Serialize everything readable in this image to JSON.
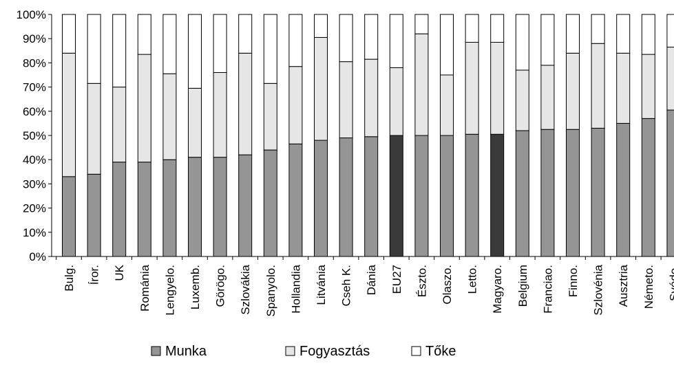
{
  "chart_data": {
    "type": "bar",
    "stacked": "percent",
    "categories": [
      "Bulg.",
      "Íror.",
      "UK",
      "Románia",
      "Lengyelo.",
      "Luxemb.",
      "Görögo.",
      "Szlovákia",
      "Spanyolo.",
      "Hollandia",
      "Litvánia",
      "Cseh K.",
      "Dánia",
      "EU27",
      "Észto.",
      "Olaszo.",
      "Letto.",
      "Magyaro.",
      "Belgium",
      "Franciao.",
      "Finno.",
      "Szlovénia",
      "Ausztria",
      "Németo.",
      "Svédo."
    ],
    "highlight_categories": [
      "EU27",
      "Magyaro."
    ],
    "series": [
      {
        "name": "Munka",
        "color": "#959595",
        "highlight_color": "#3a3a3a",
        "values": [
          33,
          34,
          39,
          39,
          40,
          41,
          41,
          42,
          44,
          46.5,
          48,
          49,
          49.5,
          50,
          50,
          50,
          50.5,
          50.5,
          52,
          52.5,
          52.5,
          53,
          55,
          57,
          60.5
        ]
      },
      {
        "name": "Fogyasztás",
        "color": "#e6e6e6",
        "values": [
          51,
          37.5,
          31,
          44.5,
          35.5,
          28.5,
          35,
          42,
          27.5,
          32,
          42.5,
          31.5,
          32,
          28,
          42,
          25,
          38,
          38,
          25,
          26.5,
          31.5,
          35,
          29,
          26.5,
          26
        ]
      },
      {
        "name": "Tőke",
        "color": "#ffffff",
        "values": [
          16,
          28.5,
          30,
          16.5,
          24.5,
          30.5,
          24,
          16,
          28.5,
          21.5,
          9.5,
          19.5,
          18.5,
          22,
          8,
          25,
          11.5,
          11.5,
          23,
          21,
          16,
          12,
          16,
          16.5,
          13.5
        ]
      }
    ],
    "yticks": [
      "0%",
      "10%",
      "20%",
      "30%",
      "40%",
      "50%",
      "60%",
      "70%",
      "80%",
      "90%",
      "100%"
    ],
    "ylim": [
      0,
      100
    ],
    "title": "",
    "xlabel": "",
    "ylabel": "",
    "grid": false,
    "legend_position": "bottom"
  }
}
